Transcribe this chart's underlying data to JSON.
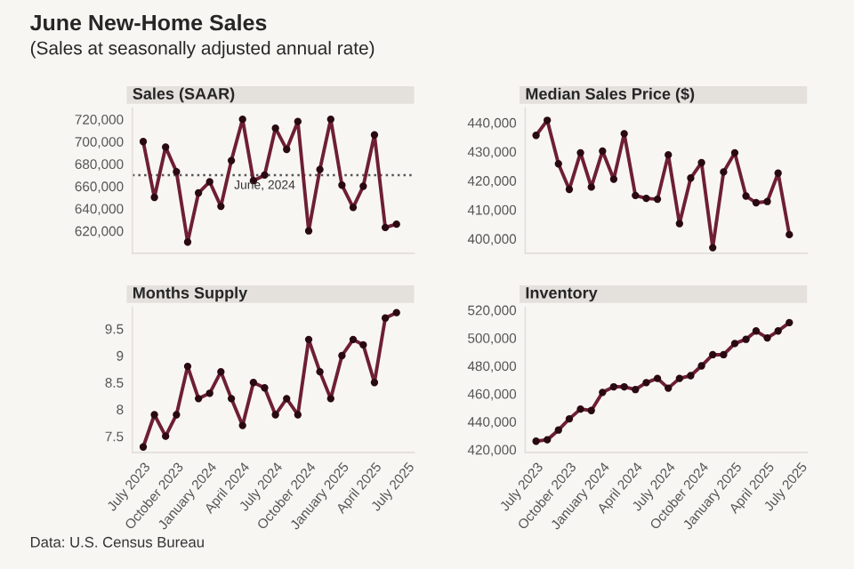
{
  "chart_data": [
    {
      "type": "other",
      "title": "June New-Home Sales",
      "subtitle": "(Sales at seasonally adjusted annual rate)",
      "annotations": [
        "Data: U.S. Census Bureau"
      ]
    },
    {
      "type": "line",
      "title": "Sales (SAAR)",
      "x": [
        "2023-07",
        "2023-08",
        "2023-09",
        "2023-10",
        "2023-11",
        "2023-12",
        "2024-01",
        "2024-02",
        "2024-03",
        "2024-04",
        "2024-05",
        "2024-06",
        "2024-07",
        "2024-08",
        "2024-09",
        "2024-10",
        "2024-11",
        "2024-12",
        "2025-01",
        "2025-02",
        "2025-03",
        "2025-04",
        "2025-05",
        "2025-06"
      ],
      "series": [
        {
          "color": "#6e1f33",
          "values": [
            700000,
            650000,
            695000,
            673000,
            610000,
            654000,
            664000,
            642000,
            683000,
            720000,
            665000,
            670000,
            712000,
            693000,
            718000,
            620000,
            675000,
            720000,
            661000,
            641000,
            660000,
            706000,
            623000,
            626000
          ]
        }
      ],
      "xlim": [
        "2023-06-01",
        "2025-07-20"
      ],
      "ylim": [
        600000,
        730000
      ],
      "yticks": [
        {
          "value": 620000,
          "label": "620,000"
        },
        {
          "value": 640000,
          "label": "640,000"
        },
        {
          "value": 660000,
          "label": "660,000"
        },
        {
          "value": 680000,
          "label": "680,000"
        },
        {
          "value": 700000,
          "label": "700,000"
        },
        {
          "value": 720000,
          "label": "720,000"
        }
      ],
      "ref_lines": [
        {
          "axis": "y",
          "value": 670000,
          "color": "#555555",
          "line_style": "dotted"
        }
      ],
      "annotations": [
        {
          "text": "June, 2024",
          "x": "2024-06",
          "y": 670000
        }
      ],
      "tick_labels": "y",
      "marker": "circle",
      "grid": false,
      "legend": false
    },
    {
      "type": "line",
      "title": "Median Sales Price ($)",
      "x": [
        "2023-07",
        "2023-08",
        "2023-09",
        "2023-10",
        "2023-11",
        "2023-12",
        "2024-01",
        "2024-02",
        "2024-03",
        "2024-04",
        "2024-05",
        "2024-06",
        "2024-07",
        "2024-08",
        "2024-09",
        "2024-10",
        "2024-11",
        "2024-12",
        "2025-01",
        "2025-02",
        "2025-03",
        "2025-04",
        "2025-05",
        "2025-06"
      ],
      "series": [
        {
          "color": "#6e1f33",
          "values": [
            435600,
            440800,
            425800,
            417000,
            429600,
            417800,
            430200,
            420500,
            436200,
            414900,
            413900,
            413600,
            428900,
            405200,
            420900,
            426200,
            396900,
            423000,
            429600,
            414700,
            412400,
            412800,
            422600,
            401400
          ]
        }
      ],
      "xlim": [
        "2023-06-01",
        "2025-07-20"
      ],
      "ylim": [
        395000,
        445000
      ],
      "yticks": [
        {
          "value": 400000,
          "label": "400,000"
        },
        {
          "value": 410000,
          "label": "410,000"
        },
        {
          "value": 420000,
          "label": "420,000"
        },
        {
          "value": 430000,
          "label": "430,000"
        },
        {
          "value": 440000,
          "label": "440,000"
        }
      ],
      "tick_labels": "y",
      "marker": "circle",
      "grid": false,
      "legend": false
    },
    {
      "type": "line",
      "title": "Months Supply",
      "x": [
        "2023-07",
        "2023-08",
        "2023-09",
        "2023-10",
        "2023-11",
        "2023-12",
        "2024-01",
        "2024-02",
        "2024-03",
        "2024-04",
        "2024-05",
        "2024-06",
        "2024-07",
        "2024-08",
        "2024-09",
        "2024-10",
        "2024-11",
        "2024-12",
        "2025-01",
        "2025-02",
        "2025-03",
        "2025-04",
        "2025-05",
        "2025-06"
      ],
      "series": [
        {
          "color": "#6e1f33",
          "values": [
            7.3,
            7.9,
            7.5,
            7.9,
            8.8,
            8.2,
            8.3,
            8.7,
            8.2,
            7.7,
            8.5,
            8.4,
            7.9,
            8.2,
            7.9,
            9.3,
            8.7,
            8.2,
            9.0,
            9.3,
            9.2,
            8.5,
            9.7,
            9.8
          ]
        }
      ],
      "xlim": [
        "2023-06-01",
        "2025-07-20"
      ],
      "xticks": [
        {
          "value": "2023-07",
          "label": "July 2023"
        },
        {
          "value": "2023-10",
          "label": "October 2023"
        },
        {
          "value": "2024-01",
          "label": "January 2024"
        },
        {
          "value": "2024-04",
          "label": "April 2024"
        },
        {
          "value": "2024-07",
          "label": "July 2024"
        },
        {
          "value": "2024-10",
          "label": "October 2024"
        },
        {
          "value": "2025-01",
          "label": "January 2025"
        },
        {
          "value": "2025-04",
          "label": "April 2025"
        },
        {
          "value": "2025-07",
          "label": "July 2025"
        }
      ],
      "ylim": [
        7.2,
        9.9
      ],
      "yticks": [
        7.5,
        8,
        8.5,
        9,
        9.5
      ],
      "marker": "circle",
      "grid": false,
      "legend": false
    },
    {
      "type": "line",
      "title": "Inventory",
      "x": [
        "2023-07",
        "2023-08",
        "2023-09",
        "2023-10",
        "2023-11",
        "2023-12",
        "2024-01",
        "2024-02",
        "2024-03",
        "2024-04",
        "2024-05",
        "2024-06",
        "2024-07",
        "2024-08",
        "2024-09",
        "2024-10",
        "2024-11",
        "2024-12",
        "2025-01",
        "2025-02",
        "2025-03",
        "2025-04",
        "2025-05",
        "2025-06"
      ],
      "series": [
        {
          "color": "#6e1f33",
          "values": [
            426000,
            427000,
            434000,
            442000,
            449000,
            448000,
            461000,
            465000,
            465000,
            463000,
            468000,
            471000,
            464000,
            471000,
            473000,
            480000,
            488000,
            488000,
            496000,
            499000,
            505000,
            500000,
            505000,
            511000
          ]
        }
      ],
      "xlim": [
        "2023-06-01",
        "2025-07-20"
      ],
      "xticks": [
        {
          "value": "2023-07",
          "label": "July 2023"
        },
        {
          "value": "2023-10",
          "label": "October 2023"
        },
        {
          "value": "2024-01",
          "label": "January 2024"
        },
        {
          "value": "2024-04",
          "label": "April 2024"
        },
        {
          "value": "2024-07",
          "label": "July 2024"
        },
        {
          "value": "2024-10",
          "label": "October 2024"
        },
        {
          "value": "2025-01",
          "label": "January 2025"
        },
        {
          "value": "2025-04",
          "label": "April 2025"
        },
        {
          "value": "2025-07",
          "label": "July 2025"
        }
      ],
      "ylim": [
        418000,
        522000
      ],
      "yticks": [
        {
          "value": 420000,
          "label": "420,000"
        },
        {
          "value": 440000,
          "label": "440,000"
        },
        {
          "value": 460000,
          "label": "460,000"
        },
        {
          "value": 480000,
          "label": "480,000"
        },
        {
          "value": 500000,
          "label": "500,000"
        },
        {
          "value": 520000,
          "label": "520,000"
        }
      ],
      "marker": "circle",
      "grid": false,
      "legend": false
    }
  ]
}
